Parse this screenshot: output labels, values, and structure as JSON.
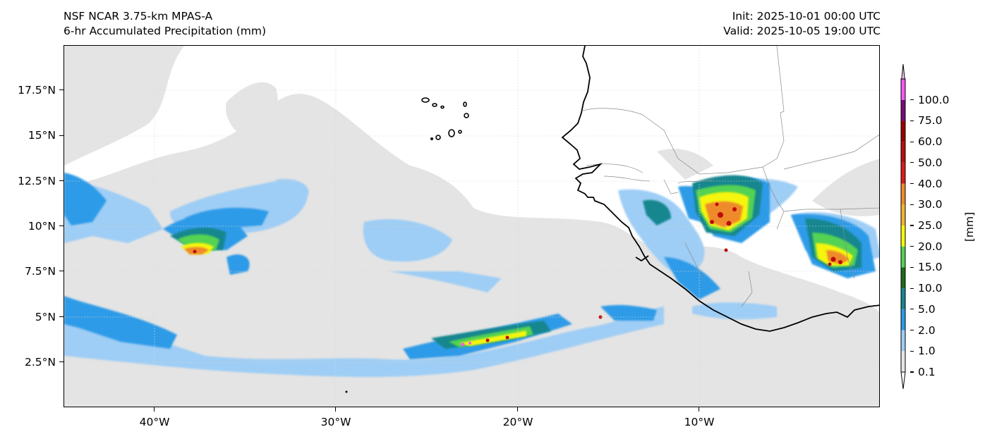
{
  "header": {
    "title_line1": "NSF NCAR 3.75-km MPAS-A",
    "title_line2": "6-hr Accumulated Precipitation (mm)",
    "init": "Init: 2025-10-01 00:00 UTC",
    "valid": "Valid: 2025-10-05 19:00 UTC"
  },
  "axes": {
    "lat_labels": [
      "17.5°N",
      "15°N",
      "12.5°N",
      "10°N",
      "7.5°N",
      "5°N",
      "2.5°N"
    ],
    "lon_labels": [
      "40°W",
      "30°W",
      "20°W",
      "10°W"
    ],
    "extent": {
      "lon_min": -45,
      "lon_max": 0,
      "lat_min": 0,
      "lat_max": 20
    }
  },
  "colorbar": {
    "units": "[mm]",
    "levels": [
      "0.1",
      "1.0",
      "2.0",
      "5.0",
      "10.0",
      "15.0",
      "20.0",
      "25.0",
      "30.0",
      "40.0",
      "50.0",
      "60.0",
      "75.0",
      "100.0"
    ],
    "colors": [
      "#e4e4e4",
      "#9ecdf5",
      "#2d9be8",
      "#17868f",
      "#1d6b1d",
      "#52d252",
      "#f5f50a",
      "#f4b431",
      "#ee8a2b",
      "#dc1a1a",
      "#bd0d0d",
      "#9b0000",
      "#7b0a7b",
      "#f558f5"
    ]
  },
  "map": {
    "features": [
      "precipitation-field",
      "coastline",
      "country-borders",
      "cape-verde-islands",
      "gridlines"
    ]
  }
}
